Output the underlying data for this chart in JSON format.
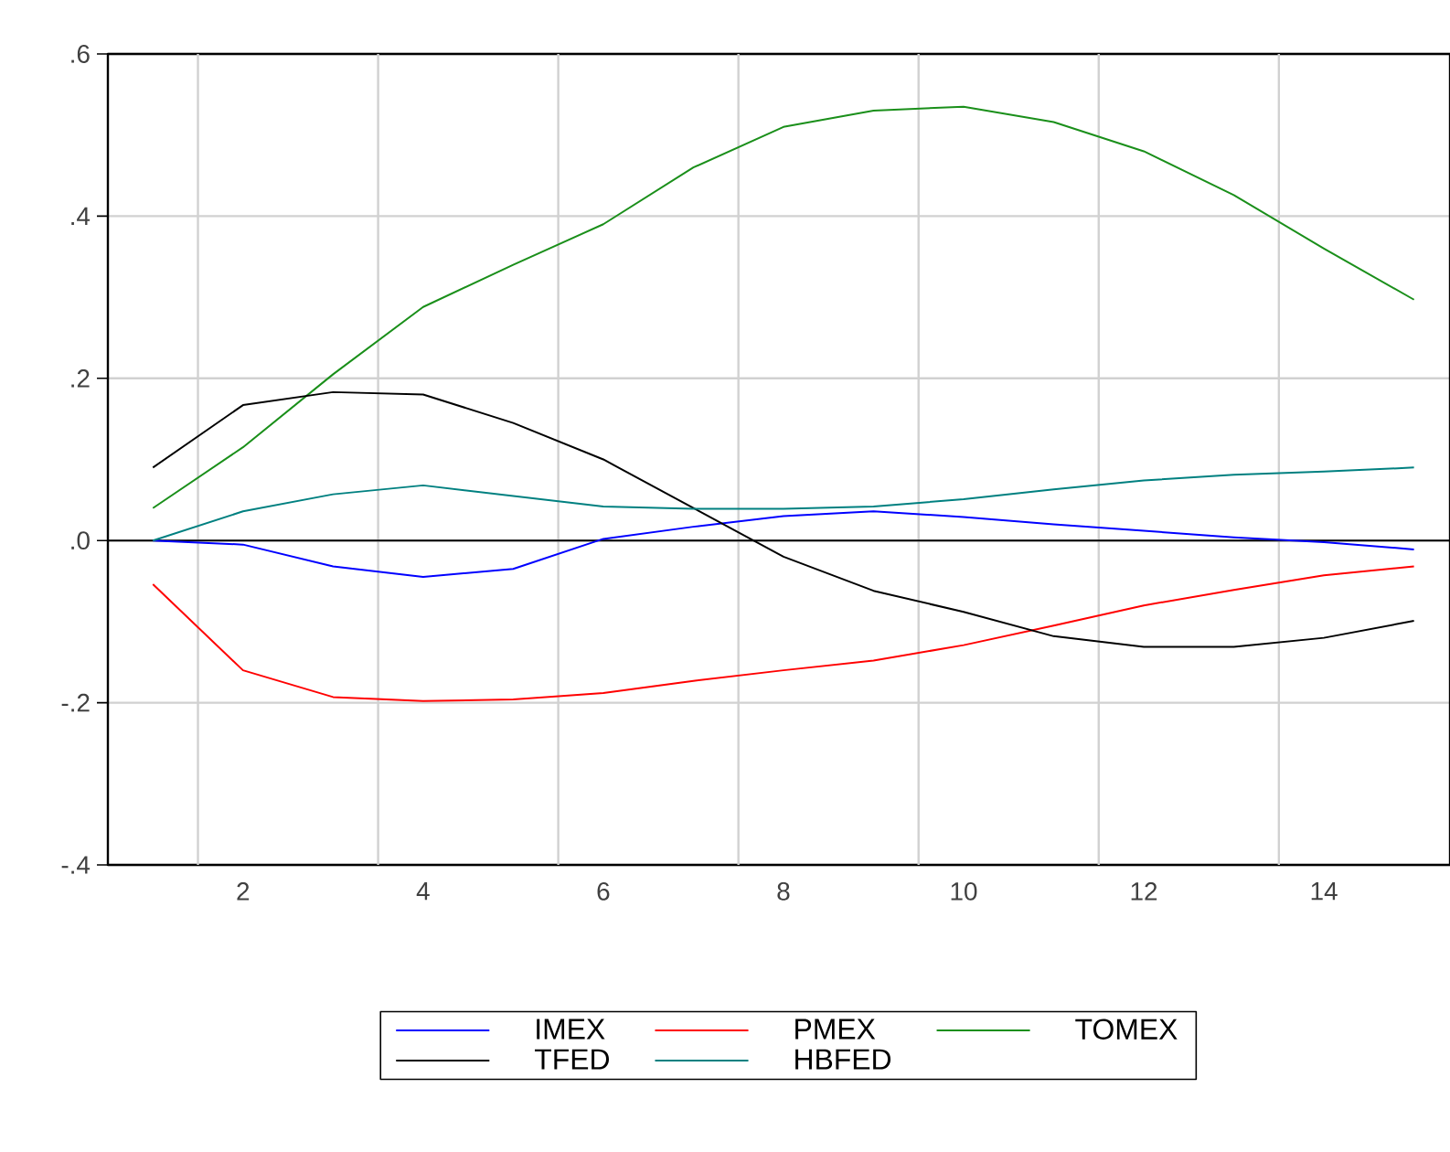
{
  "chart_data": {
    "type": "line",
    "x": [
      1,
      2,
      3,
      4,
      5,
      6,
      7,
      8,
      9,
      10,
      11,
      12,
      13,
      14,
      15
    ],
    "xlim": [
      0.5,
      15.4
    ],
    "ylim": [
      -0.4,
      0.6
    ],
    "xticks": [
      {
        "value": 1.5,
        "label": null
      },
      {
        "value": 2,
        "label": "2"
      },
      {
        "value": 3.5,
        "label": null
      },
      {
        "value": 4,
        "label": "4"
      },
      {
        "value": 5.5,
        "label": null
      },
      {
        "value": 6,
        "label": "6"
      },
      {
        "value": 7.5,
        "label": null
      },
      {
        "value": 8,
        "label": "8"
      },
      {
        "value": 9.5,
        "label": null
      },
      {
        "value": 10,
        "label": "10"
      },
      {
        "value": 11.5,
        "label": null
      },
      {
        "value": 12,
        "label": "12"
      },
      {
        "value": 13.5,
        "label": null
      },
      {
        "value": 14,
        "label": "14"
      }
    ],
    "yticks": [
      {
        "value": -0.4,
        "label": "-.4"
      },
      {
        "value": -0.2,
        "label": "-.2"
      },
      {
        "value": 0,
        "label": ".0"
      },
      {
        "value": 0.2,
        "label": ".2"
      },
      {
        "value": 0.4,
        "label": ".4"
      },
      {
        "value": 0.6,
        "label": ".6"
      }
    ],
    "grid": true,
    "legend": "bottom",
    "ref_lines": [
      {
        "axis": "y",
        "value": 0,
        "color": "#000000"
      }
    ],
    "series": [
      {
        "name": "IMEX",
        "color": "#0000ff",
        "values": [
          0,
          -0.005,
          -0.032,
          -0.045,
          -0.035,
          0.002,
          0.017,
          0.03,
          0.036,
          0.029,
          0.02,
          0.012,
          0.004,
          -0.002,
          -0.011
        ]
      },
      {
        "name": "PMEX",
        "color": "#ff0000",
        "values": [
          -0.054,
          -0.16,
          -0.193,
          -0.198,
          -0.196,
          -0.188,
          -0.173,
          -0.16,
          -0.148,
          -0.129,
          -0.105,
          -0.08,
          -0.061,
          -0.043,
          -0.032
        ]
      },
      {
        "name": "TOMEX",
        "color": "#1a8f1a",
        "values": [
          0.04,
          0.115,
          0.205,
          0.288,
          0.34,
          0.39,
          0.46,
          0.51,
          0.53,
          0.535,
          0.516,
          0.48,
          0.426,
          0.36,
          0.297
        ]
      },
      {
        "name": "TFED",
        "color": "#000000",
        "values": [
          0.09,
          0.167,
          0.183,
          0.18,
          0.145,
          0.1,
          0.04,
          -0.02,
          -0.062,
          -0.088,
          -0.118,
          -0.131,
          -0.131,
          -0.12,
          -0.099
        ]
      },
      {
        "name": "HBFED",
        "color": "#008080",
        "values": [
          0,
          0.036,
          0.057,
          0.068,
          0.055,
          0.042,
          0.039,
          0.039,
          0.042,
          0.051,
          0.063,
          0.074,
          0.081,
          0.085,
          0.09
        ]
      }
    ]
  }
}
